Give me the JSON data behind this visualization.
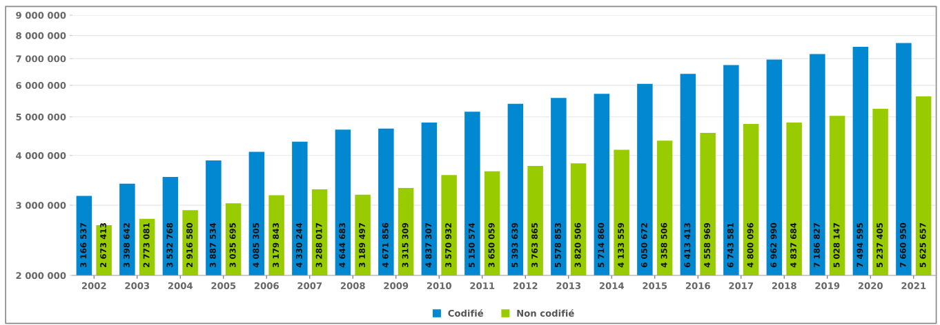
{
  "chart_data": {
    "type": "bar",
    "log": "y",
    "categories": [
      "2002",
      "2003",
      "2004",
      "2005",
      "2006",
      "2007",
      "2008",
      "2009",
      "2010",
      "2011",
      "2012",
      "2013",
      "2014",
      "2015",
      "2016",
      "2017",
      "2018",
      "2019",
      "2020",
      "2021"
    ],
    "series": [
      {
        "name": "Codifié",
        "color": "#0288d1",
        "values": [
          3166537,
          3398642,
          3532768,
          3887534,
          4085305,
          4330244,
          4644683,
          4671856,
          4837307,
          5150574,
          5393639,
          5578853,
          5714860,
          6050672,
          6413413,
          6743581,
          6962990,
          7186827,
          7494595,
          7660950
        ],
        "value_labels": [
          "3 166 537",
          "3 398 642",
          "3 532 768",
          "3 887 534",
          "4 085 305",
          "4 330 244",
          "4 644 683",
          "4 671 856",
          "4 837 307",
          "5 150 574",
          "5 393 639",
          "5 578 853",
          "5 714 860",
          "6 050 672",
          "6 413 413",
          "6 743 581",
          "6 962 990",
          "7 186 827",
          "7 494 595",
          "7 660 950"
        ]
      },
      {
        "name": "Non codifié",
        "color": "#99cc00",
        "values": [
          2673413,
          2773081,
          2916580,
          3035695,
          3179843,
          3288017,
          3189497,
          3315309,
          3570932,
          3650059,
          3763865,
          3820506,
          4133559,
          4358506,
          4558969,
          4800096,
          4837684,
          5028147,
          5237405,
          5625657
        ],
        "value_labels": [
          "2 673 413",
          "2 773 081",
          "2 916 580",
          "3 035 695",
          "3 179 843",
          "3 288 017",
          "3 189 497",
          "3 315 309",
          "3 570 932",
          "3 650 059",
          "3 763 865",
          "3 820 506",
          "4 133 559",
          "4 358 506",
          "4 558 969",
          "4 800 096",
          "4 837 684",
          "5 028 147",
          "5 237 405",
          "5 625 657"
        ]
      }
    ],
    "ylim": [
      2000000,
      9000000
    ],
    "yticks": [
      {
        "value": 2000000,
        "label": "2 000 000"
      },
      {
        "value": 3000000,
        "label": "3 000 000"
      },
      {
        "value": 4000000,
        "label": "4 000 000"
      },
      {
        "value": 5000000,
        "label": "5 000 000"
      },
      {
        "value": 6000000,
        "label": "6 000 000"
      },
      {
        "value": 7000000,
        "label": "7 000 000"
      },
      {
        "value": 8000000,
        "label": "8 000 000"
      },
      {
        "value": 9000000,
        "label": "9 000 000"
      }
    ],
    "grid": "y",
    "legend": "bottom"
  }
}
